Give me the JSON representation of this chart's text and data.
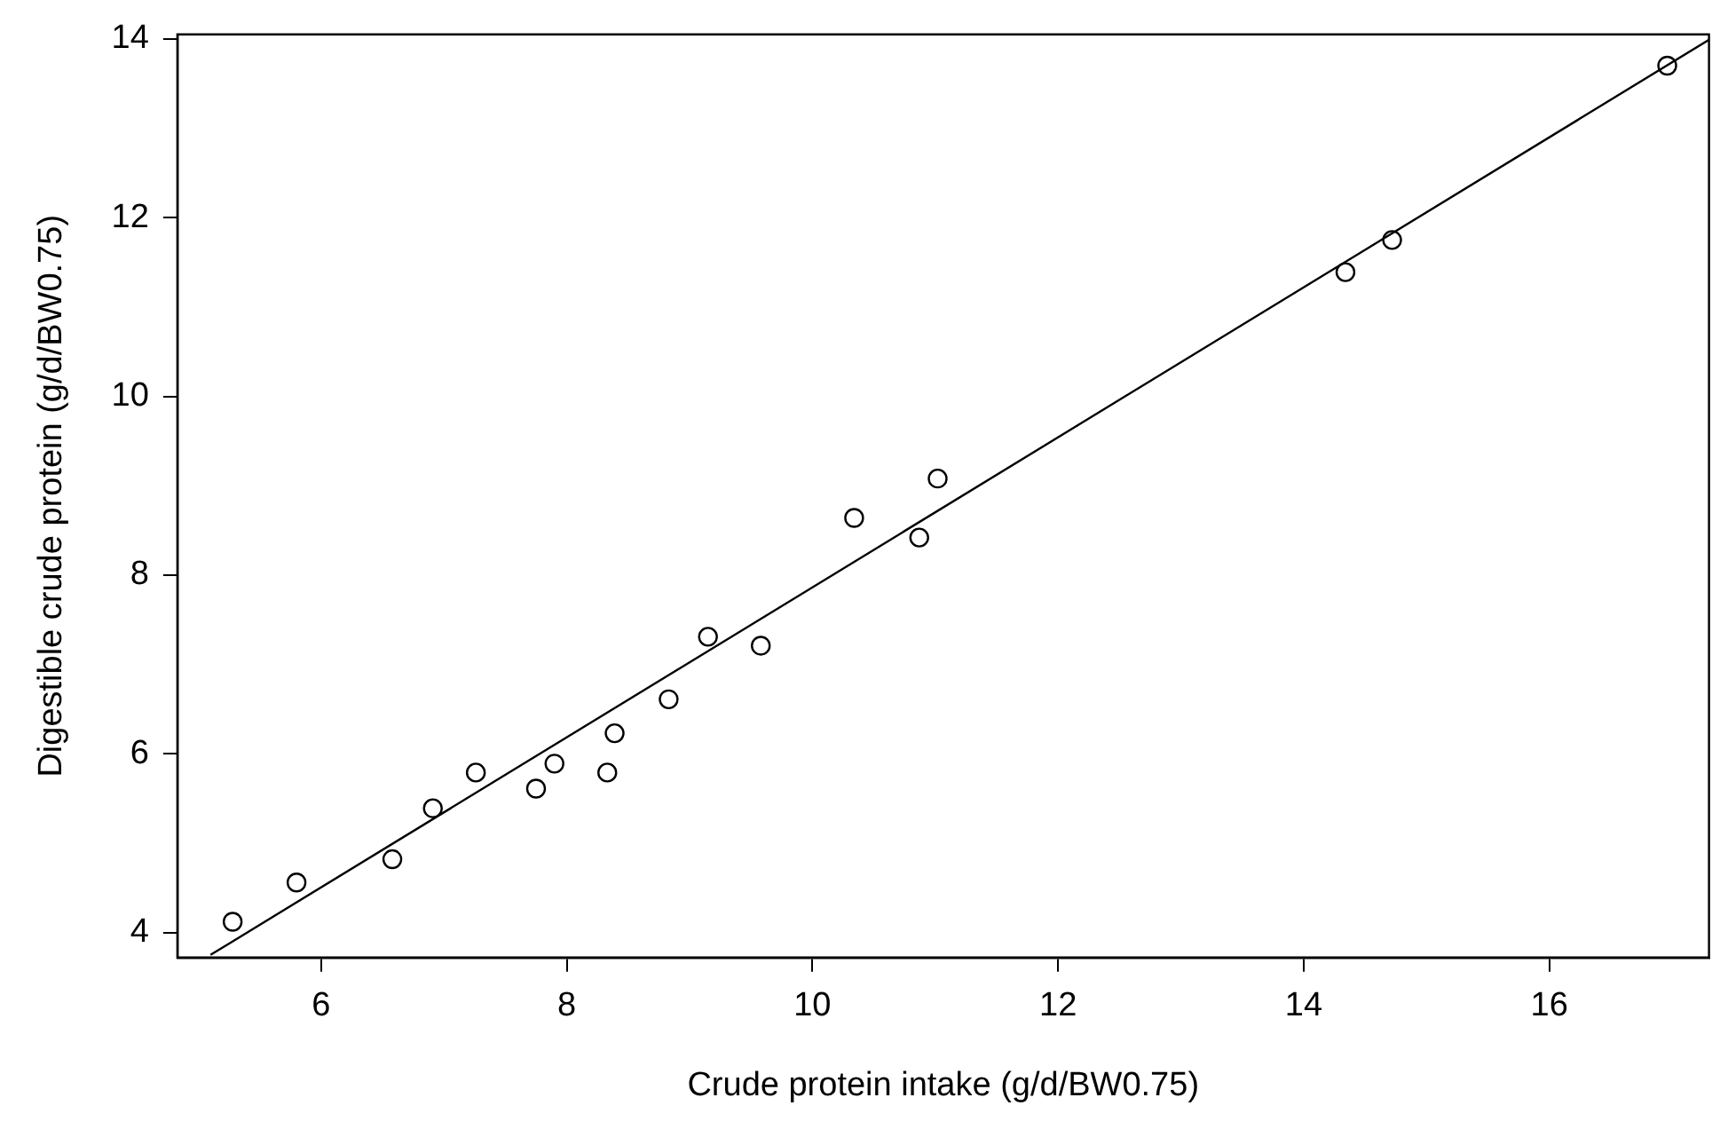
{
  "chart_data": {
    "type": "scatter",
    "xlabel": "Crude protein intake (g/d/BW0.75)",
    "ylabel": "Digestible crude protein (g/d/BW0.75)",
    "xlim": [
      4.83,
      17.3
    ],
    "ylim": [
      3.72,
      14.05
    ],
    "xticks": [
      6,
      8,
      10,
      12,
      14,
      16
    ],
    "yticks": [
      4,
      6,
      8,
      10,
      12,
      14
    ],
    "grid": false,
    "legend": false,
    "marker": "circle",
    "series": [
      {
        "type": "scatter",
        "color": "#000000",
        "x": [
          5.28,
          5.8,
          6.58,
          6.91,
          7.26,
          7.75,
          7.9,
          8.33,
          8.39,
          8.83,
          9.15,
          9.58,
          10.34,
          10.87,
          11.02,
          14.34,
          14.72,
          16.96
        ],
        "values": [
          4.12,
          4.56,
          4.82,
          5.39,
          5.79,
          5.61,
          5.89,
          5.79,
          6.23,
          6.61,
          7.31,
          7.21,
          8.64,
          8.42,
          9.08,
          11.39,
          11.75,
          13.7
        ]
      },
      {
        "type": "line",
        "color": "#000000",
        "line_style": "solid",
        "marker": "none",
        "x": [
          5.1,
          17.3
        ],
        "values": [
          3.75,
          13.99
        ]
      }
    ]
  }
}
